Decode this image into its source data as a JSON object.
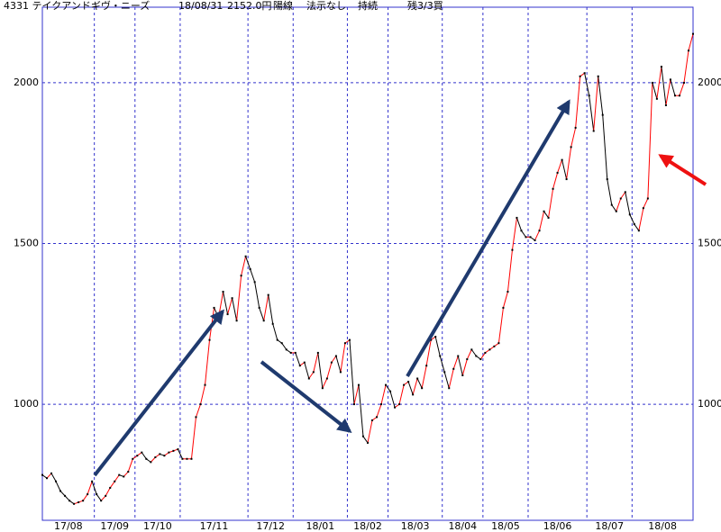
{
  "chart_data": {
    "type": "line",
    "header": [
      "4331 テイクアンドギヴ・ニーズ",
      "18/08/31",
      "2152.0円",
      "陽線",
      "法示なし",
      "持続",
      "残3/3買"
    ],
    "values": [
      780,
      770,
      785,
      760,
      730,
      715,
      700,
      690,
      695,
      700,
      720,
      760,
      720,
      700,
      715,
      740,
      760,
      780,
      775,
      790,
      830,
      840,
      850,
      830,
      820,
      835,
      845,
      840,
      850,
      855,
      860,
      830,
      830,
      830,
      960,
      1000,
      1060,
      1200,
      1300,
      1270,
      1350,
      1280,
      1330,
      1260,
      1400,
      1460,
      1420,
      1380,
      1300,
      1260,
      1340,
      1250,
      1200,
      1190,
      1170,
      1160,
      1160,
      1120,
      1130,
      1080,
      1100,
      1160,
      1050,
      1080,
      1130,
      1150,
      1100,
      1190,
      1200,
      1000,
      1060,
      900,
      880,
      950,
      960,
      1000,
      1060,
      1040,
      990,
      1000,
      1060,
      1070,
      1030,
      1080,
      1050,
      1120,
      1200,
      1210,
      1150,
      1100,
      1050,
      1110,
      1150,
      1090,
      1140,
      1170,
      1150,
      1140,
      1160,
      1170,
      1180,
      1190,
      1300,
      1350,
      1480,
      1580,
      1540,
      1520,
      1520,
      1510,
      1540,
      1600,
      1580,
      1670,
      1720,
      1760,
      1700,
      1800,
      1860,
      2020,
      2030,
      1960,
      1850,
      2020,
      1900,
      1700,
      1620,
      1600,
      1640,
      1660,
      1590,
      1560,
      1540,
      1610,
      1640,
      2000,
      1950,
      2050,
      1930,
      2010,
      1960,
      1960,
      2000,
      2100,
      2152
    ],
    "up_color": "#ff0000",
    "down_color": "#000000",
    "xlim": [
      0,
      144
    ],
    "xgrid": [
      11.5,
      20.5,
      30.5,
      45.5,
      55.5,
      67.5,
      76.5,
      88.5,
      97.5,
      107.5,
      120.5,
      130.5
    ],
    "xticks": [
      {
        "value": 5.75,
        "label": "17/08"
      },
      {
        "value": 16,
        "label": "17/09"
      },
      {
        "value": 25.5,
        "label": "17/10"
      },
      {
        "value": 38,
        "label": "17/11"
      },
      {
        "value": 50.5,
        "label": "17/12"
      },
      {
        "value": 61.5,
        "label": "18/01"
      },
      {
        "value": 72,
        "label": "18/02"
      },
      {
        "value": 82.5,
        "label": "18/03"
      },
      {
        "value": 93,
        "label": "18/04"
      },
      {
        "value": 102.5,
        "label": "18/05"
      },
      {
        "value": 114,
        "label": "18/06"
      },
      {
        "value": 125.5,
        "label": "18/07"
      },
      {
        "value": 137.25,
        "label": "18/08"
      }
    ],
    "ylim": [
      639,
      2235
    ],
    "yticks": [
      1000,
      1500,
      2000
    ],
    "grid": true
  }
}
